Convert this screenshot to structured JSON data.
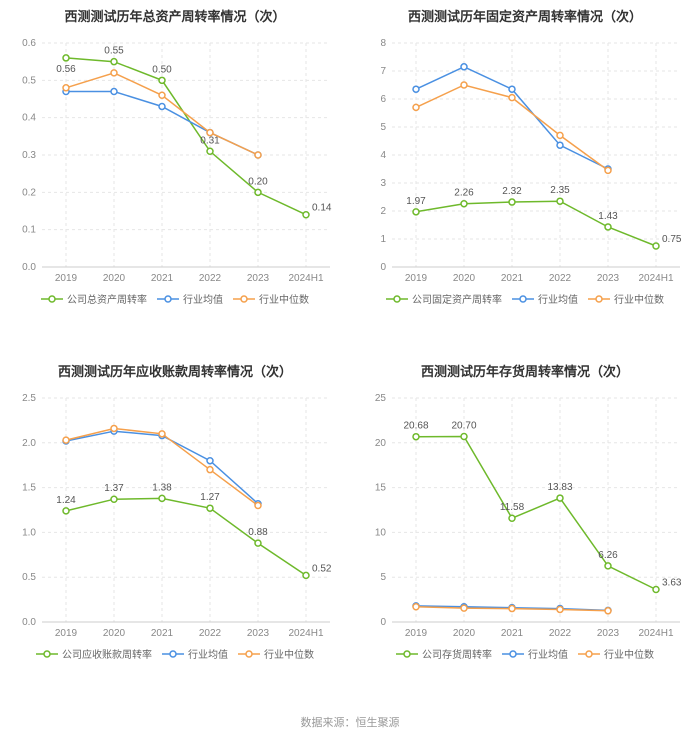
{
  "footer": "数据来源：恒生聚源",
  "charts": [
    {
      "title": "西测测试历年总资产周转率情况（次）",
      "categories": [
        "2019",
        "2020",
        "2021",
        "2022",
        "2023",
        "2024H1"
      ],
      "ylim": [
        0,
        0.6
      ],
      "ytick_step": 0.1,
      "y_decimals": 1,
      "series": [
        {
          "name": "公司总资产周转率",
          "color": "#6eb92b",
          "marker": "hollow-circle",
          "values": [
            0.56,
            0.55,
            0.5,
            0.31,
            0.2,
            0.14
          ],
          "labels": [
            "0.56",
            "0.55",
            "0.50",
            "0.31",
            "0.20",
            "0.14"
          ],
          "show_labels": true
        },
        {
          "name": "行业均值",
          "color": "#4a90e2",
          "marker": "hollow-circle",
          "values": [
            0.47,
            0.47,
            0.43,
            0.36,
            0.3,
            null
          ],
          "show_labels": false
        },
        {
          "name": "行业中位数",
          "color": "#f5a04c",
          "marker": "hollow-circle",
          "values": [
            0.48,
            0.52,
            0.46,
            0.36,
            0.3,
            null
          ],
          "show_labels": false
        }
      ]
    },
    {
      "title": "西测测试历年固定资产周转率情况（次）",
      "categories": [
        "2019",
        "2020",
        "2021",
        "2022",
        "2023",
        "2024H1"
      ],
      "ylim": [
        0,
        8
      ],
      "ytick_step": 1,
      "y_decimals": 0,
      "series": [
        {
          "name": "公司固定资产周转率",
          "color": "#6eb92b",
          "marker": "hollow-circle",
          "values": [
            1.97,
            2.26,
            2.32,
            2.35,
            1.43,
            0.75
          ],
          "labels": [
            "1.97",
            "2.26",
            "2.32",
            "2.35",
            "1.43",
            "0.75"
          ],
          "show_labels": true
        },
        {
          "name": "行业均值",
          "color": "#4a90e2",
          "marker": "hollow-circle",
          "values": [
            6.35,
            7.15,
            6.35,
            4.35,
            3.5,
            null
          ],
          "show_labels": false
        },
        {
          "name": "行业中位数",
          "color": "#f5a04c",
          "marker": "hollow-circle",
          "values": [
            5.7,
            6.5,
            6.05,
            4.7,
            3.45,
            null
          ],
          "show_labels": false
        }
      ]
    },
    {
      "title": "西测测试历年应收账款周转率情况（次）",
      "categories": [
        "2019",
        "2020",
        "2021",
        "2022",
        "2023",
        "2024H1"
      ],
      "ylim": [
        0,
        2.5
      ],
      "ytick_step": 0.5,
      "y_decimals": 1,
      "series": [
        {
          "name": "公司应收账款周转率",
          "color": "#6eb92b",
          "marker": "hollow-circle",
          "values": [
            1.24,
            1.37,
            1.38,
            1.27,
            0.88,
            0.52
          ],
          "labels": [
            "1.24",
            "1.37",
            "1.38",
            "1.27",
            "0.88",
            "0.52"
          ],
          "show_labels": true
        },
        {
          "name": "行业均值",
          "color": "#4a90e2",
          "marker": "hollow-circle",
          "values": [
            2.02,
            2.13,
            2.08,
            1.8,
            1.32,
            null
          ],
          "show_labels": false
        },
        {
          "name": "行业中位数",
          "color": "#f5a04c",
          "marker": "hollow-circle",
          "values": [
            2.03,
            2.16,
            2.1,
            1.7,
            1.3,
            null
          ],
          "show_labels": false
        }
      ]
    },
    {
      "title": "西测测试历年存货周转率情况（次）",
      "categories": [
        "2019",
        "2020",
        "2021",
        "2022",
        "2023",
        "2024H1"
      ],
      "ylim": [
        0,
        25
      ],
      "ytick_step": 5,
      "y_decimals": 0,
      "series": [
        {
          "name": "公司存货周转率",
          "color": "#6eb92b",
          "marker": "hollow-circle",
          "values": [
            20.68,
            20.7,
            11.58,
            13.83,
            6.26,
            3.63
          ],
          "labels": [
            "20.68",
            "20.70",
            "11.58",
            "13.83",
            "6.26",
            "3.63"
          ],
          "show_labels": true
        },
        {
          "name": "行业均值",
          "color": "#4a90e2",
          "marker": "hollow-circle",
          "values": [
            1.8,
            1.7,
            1.6,
            1.5,
            1.3,
            null
          ],
          "show_labels": false
        },
        {
          "name": "行业中位数",
          "color": "#f5a04c",
          "marker": "hollow-circle",
          "values": [
            1.7,
            1.55,
            1.5,
            1.4,
            1.25,
            null
          ],
          "show_labels": false
        }
      ]
    }
  ],
  "style": {
    "background_color": "#ffffff",
    "grid_color": "#e6e6e6",
    "axis_color": "#cccccc",
    "tick_label_color": "#888888",
    "title_color": "#333333",
    "label_fontsize": 10,
    "title_fontsize": 13,
    "data_label_fontsize": 10,
    "line_width": 1.5,
    "marker_radius": 3
  }
}
